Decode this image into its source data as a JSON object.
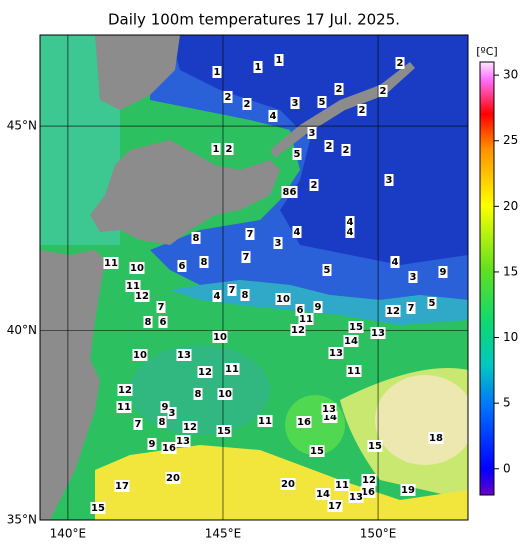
{
  "title": "Daily 100m temperatures 17 Jul. 2025.",
  "map": {
    "xlim": [
      139.1,
      152.9
    ],
    "ylim": [
      35,
      47.1
    ],
    "xticks": [
      {
        "value": 140,
        "label": "140°E"
      },
      {
        "value": 145,
        "label": "145°E"
      },
      {
        "value": 150,
        "label": "150°E"
      }
    ],
    "yticks": [
      {
        "value": 35,
        "label": "35°N"
      },
      {
        "value": 40,
        "label": "40°N"
      },
      {
        "value": 45,
        "label": "45°N"
      }
    ]
  },
  "colorbar": {
    "unit": "[ºC]",
    "lim": [
      -2,
      31
    ],
    "ticks": [
      0,
      5,
      10,
      15,
      20,
      25,
      30
    ]
  },
  "contour_labels": [
    1,
    1,
    1,
    2,
    2,
    4,
    3,
    5,
    2,
    2,
    2,
    2,
    3,
    5,
    2,
    2,
    3,
    2,
    1,
    2,
    8,
    6,
    8,
    7,
    3,
    4,
    4,
    4,
    8,
    6,
    7,
    5,
    4,
    3,
    9,
    5,
    7,
    12,
    11,
    10,
    11,
    12,
    7,
    8,
    6,
    4,
    7,
    8,
    10,
    6,
    9,
    11,
    12,
    15,
    14,
    13,
    10,
    13,
    13,
    10,
    12,
    11,
    11,
    12,
    8,
    10,
    11,
    9,
    3,
    7,
    8,
    12,
    15,
    11,
    16,
    14,
    13,
    9,
    16,
    13,
    15,
    15,
    18,
    20,
    17,
    20,
    11,
    12,
    16,
    19,
    14,
    13,
    17,
    15
  ]
}
